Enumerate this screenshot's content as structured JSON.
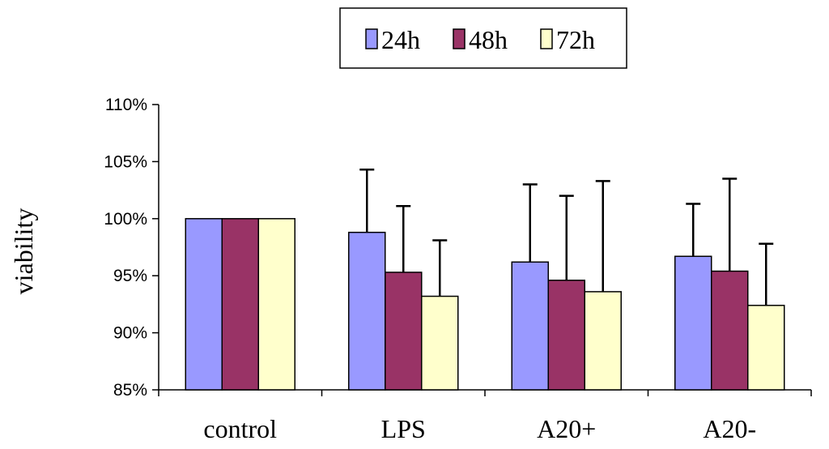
{
  "chart_data": {
    "type": "bar",
    "title": "",
    "xlabel": "",
    "ylabel": "viability",
    "ylim": [
      85,
      110
    ],
    "yticks": [
      {
        "value": 85,
        "label": "85%"
      },
      {
        "value": 90,
        "label": "90%"
      },
      {
        "value": 95,
        "label": "95%"
      },
      {
        "value": 100,
        "label": "100%"
      },
      {
        "value": 105,
        "label": "105%"
      },
      {
        "value": 110,
        "label": "110%"
      }
    ],
    "categories": [
      "control",
      "LPS",
      "A20+",
      "A20-"
    ],
    "series": [
      {
        "name": "24h",
        "color": "#9999ff",
        "values": [
          100,
          98.8,
          96.2,
          96.7
        ],
        "errors": [
          0,
          5.5,
          6.8,
          4.6
        ]
      },
      {
        "name": "48h",
        "color": "#993366",
        "values": [
          100,
          95.3,
          94.6,
          95.4
        ],
        "errors": [
          0,
          5.8,
          7.4,
          8.1
        ]
      },
      {
        "name": "72h",
        "color": "#ffffcc",
        "values": [
          100,
          93.2,
          93.6,
          92.4
        ],
        "errors": [
          0,
          4.9,
          9.7,
          5.4
        ]
      }
    ],
    "legend_position": "top-center",
    "grid": false
  }
}
